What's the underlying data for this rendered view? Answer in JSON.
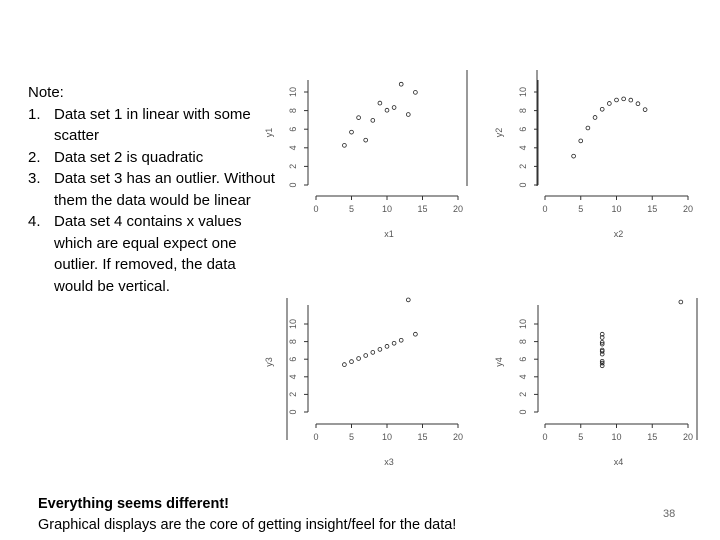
{
  "note": {
    "title": "Note:",
    "items": [
      {
        "num": "1.",
        "text": "Data set 1 in linear with some scatter"
      },
      {
        "num": "2.",
        "text": "Data set 2 is quadratic"
      },
      {
        "num": "3.",
        "text": "Data set 3 has an outlier. Without them the data would be linear"
      },
      {
        "num": "4.",
        "text": "Data set 4 contains x values which are equal expect one outlier. If removed, the data would be vertical."
      }
    ]
  },
  "footer": {
    "line1": "Everything seems different!",
    "line2": "Graphical displays are the core of getting insight/feel for the data!"
  },
  "slide_number": "38",
  "chart_data": [
    {
      "type": "scatter",
      "xlabel": "x1",
      "ylabel": "y1",
      "xlim": [
        0,
        20
      ],
      "ylim": [
        0,
        10
      ],
      "xticks": [
        "0",
        "5",
        "10",
        "15",
        "20"
      ],
      "yticks": [
        "0",
        "2",
        "4",
        "6",
        "8",
        "10"
      ],
      "points": [
        [
          10,
          8.04
        ],
        [
          8,
          6.95
        ],
        [
          13,
          7.58
        ],
        [
          9,
          8.81
        ],
        [
          11,
          8.33
        ],
        [
          14,
          9.96
        ],
        [
          6,
          7.24
        ],
        [
          4,
          4.26
        ],
        [
          12,
          10.84
        ],
        [
          7,
          4.82
        ],
        [
          5,
          5.68
        ]
      ]
    },
    {
      "type": "scatter",
      "xlabel": "x2",
      "ylabel": "y2",
      "xlim": [
        0,
        20
      ],
      "ylim": [
        0,
        10
      ],
      "xticks": [
        "0",
        "5",
        "10",
        "15",
        "20"
      ],
      "yticks": [
        "0",
        "2",
        "4",
        "6",
        "8",
        "10"
      ],
      "points": [
        [
          10,
          9.14
        ],
        [
          8,
          8.14
        ],
        [
          13,
          8.74
        ],
        [
          9,
          8.77
        ],
        [
          11,
          9.26
        ],
        [
          14,
          8.1
        ],
        [
          6,
          6.13
        ],
        [
          4,
          3.1
        ],
        [
          12,
          9.13
        ],
        [
          7,
          7.26
        ],
        [
          5,
          4.74
        ]
      ]
    },
    {
      "type": "scatter",
      "xlabel": "x3",
      "ylabel": "y3",
      "xlim": [
        0,
        20
      ],
      "ylim": [
        0,
        13
      ],
      "xticks": [
        "0",
        "5",
        "10",
        "15",
        "20"
      ],
      "yticks": [
        "0",
        "2",
        "4",
        "6",
        "8",
        "10"
      ],
      "points": [
        [
          10,
          7.46
        ],
        [
          8,
          6.77
        ],
        [
          13,
          12.74
        ],
        [
          9,
          7.11
        ],
        [
          11,
          7.81
        ],
        [
          14,
          8.84
        ],
        [
          6,
          6.08
        ],
        [
          4,
          5.39
        ],
        [
          12,
          8.15
        ],
        [
          7,
          6.42
        ],
        [
          5,
          5.73
        ]
      ]
    },
    {
      "type": "scatter",
      "xlabel": "x4",
      "ylabel": "y4",
      "xlim": [
        0,
        20
      ],
      "ylim": [
        0,
        13
      ],
      "xticks": [
        "0",
        "5",
        "10",
        "15",
        "20"
      ],
      "yticks": [
        "0",
        "2",
        "4",
        "6",
        "8",
        "10"
      ],
      "points": [
        [
          8,
          6.58
        ],
        [
          8,
          5.76
        ],
        [
          8,
          7.71
        ],
        [
          8,
          8.84
        ],
        [
          8,
          8.47
        ],
        [
          8,
          7.04
        ],
        [
          8,
          5.25
        ],
        [
          19,
          12.5
        ],
        [
          8,
          5.56
        ],
        [
          8,
          7.91
        ],
        [
          8,
          6.89
        ]
      ]
    }
  ]
}
